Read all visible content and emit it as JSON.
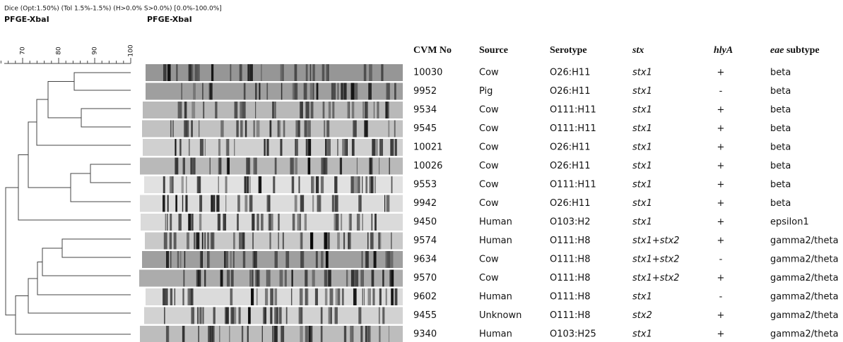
{
  "header": {
    "settings": "Dice (Opt:1.50%) (Tol 1.5%-1.5%) (H>0.0% S>0.0%) [0.0%-100.0%]",
    "label_left": "PFGE-XbaI",
    "label_gel": "PFGE-XbaI"
  },
  "scale": {
    "ticks": [
      70,
      80,
      90,
      100
    ]
  },
  "table": {
    "columns": [
      "CVM No",
      "Source",
      "Serotype",
      "stx",
      "hlyA",
      [
        "eae",
        "subtype"
      ]
    ],
    "rows": [
      [
        "10030",
        "Cow",
        "O26:H11",
        "stx1",
        "+",
        "beta"
      ],
      [
        "9952",
        "Pig",
        "O26:H11",
        "stx1",
        "-",
        "beta"
      ],
      [
        "9534",
        "Cow",
        "O111:H11",
        "stx1",
        "+",
        "beta"
      ],
      [
        "9545",
        "Cow",
        "O111:H11",
        "stx1",
        "+",
        "beta"
      ],
      [
        "10021",
        "Cow",
        "O26:H11",
        "stx1",
        "+",
        "beta"
      ],
      [
        "10026",
        "Cow",
        "O26:H11",
        "stx1",
        "+",
        "beta"
      ],
      [
        "9553",
        "Cow",
        "O111:H11",
        "stx1",
        "+",
        "beta"
      ],
      [
        "9942",
        "Cow",
        "O26:H11",
        "stx1",
        "+",
        "beta"
      ],
      [
        "9450",
        "Human",
        "O103:H2",
        "stx1",
        "+",
        "epsilon1"
      ],
      [
        "9574",
        "Human",
        "O111:H8",
        "stx1+stx2",
        "+",
        "gamma2/theta"
      ],
      [
        "9634",
        "Cow",
        "O111:H8",
        "stx1+stx2",
        "-",
        "gamma2/theta"
      ],
      [
        "9570",
        "Cow",
        "O111:H8",
        "stx1+stx2",
        "+",
        "gamma2/theta"
      ],
      [
        "9602",
        "Human",
        "O111:H8",
        "stx1",
        "-",
        "gamma2/theta"
      ],
      [
        "9455",
        "Unknown",
        "O111:H8",
        "stx2",
        "+",
        "gamma2/theta"
      ],
      [
        "9340",
        "Human",
        "O103:H25",
        "stx1",
        "+",
        "gamma2/theta"
      ]
    ]
  }
}
